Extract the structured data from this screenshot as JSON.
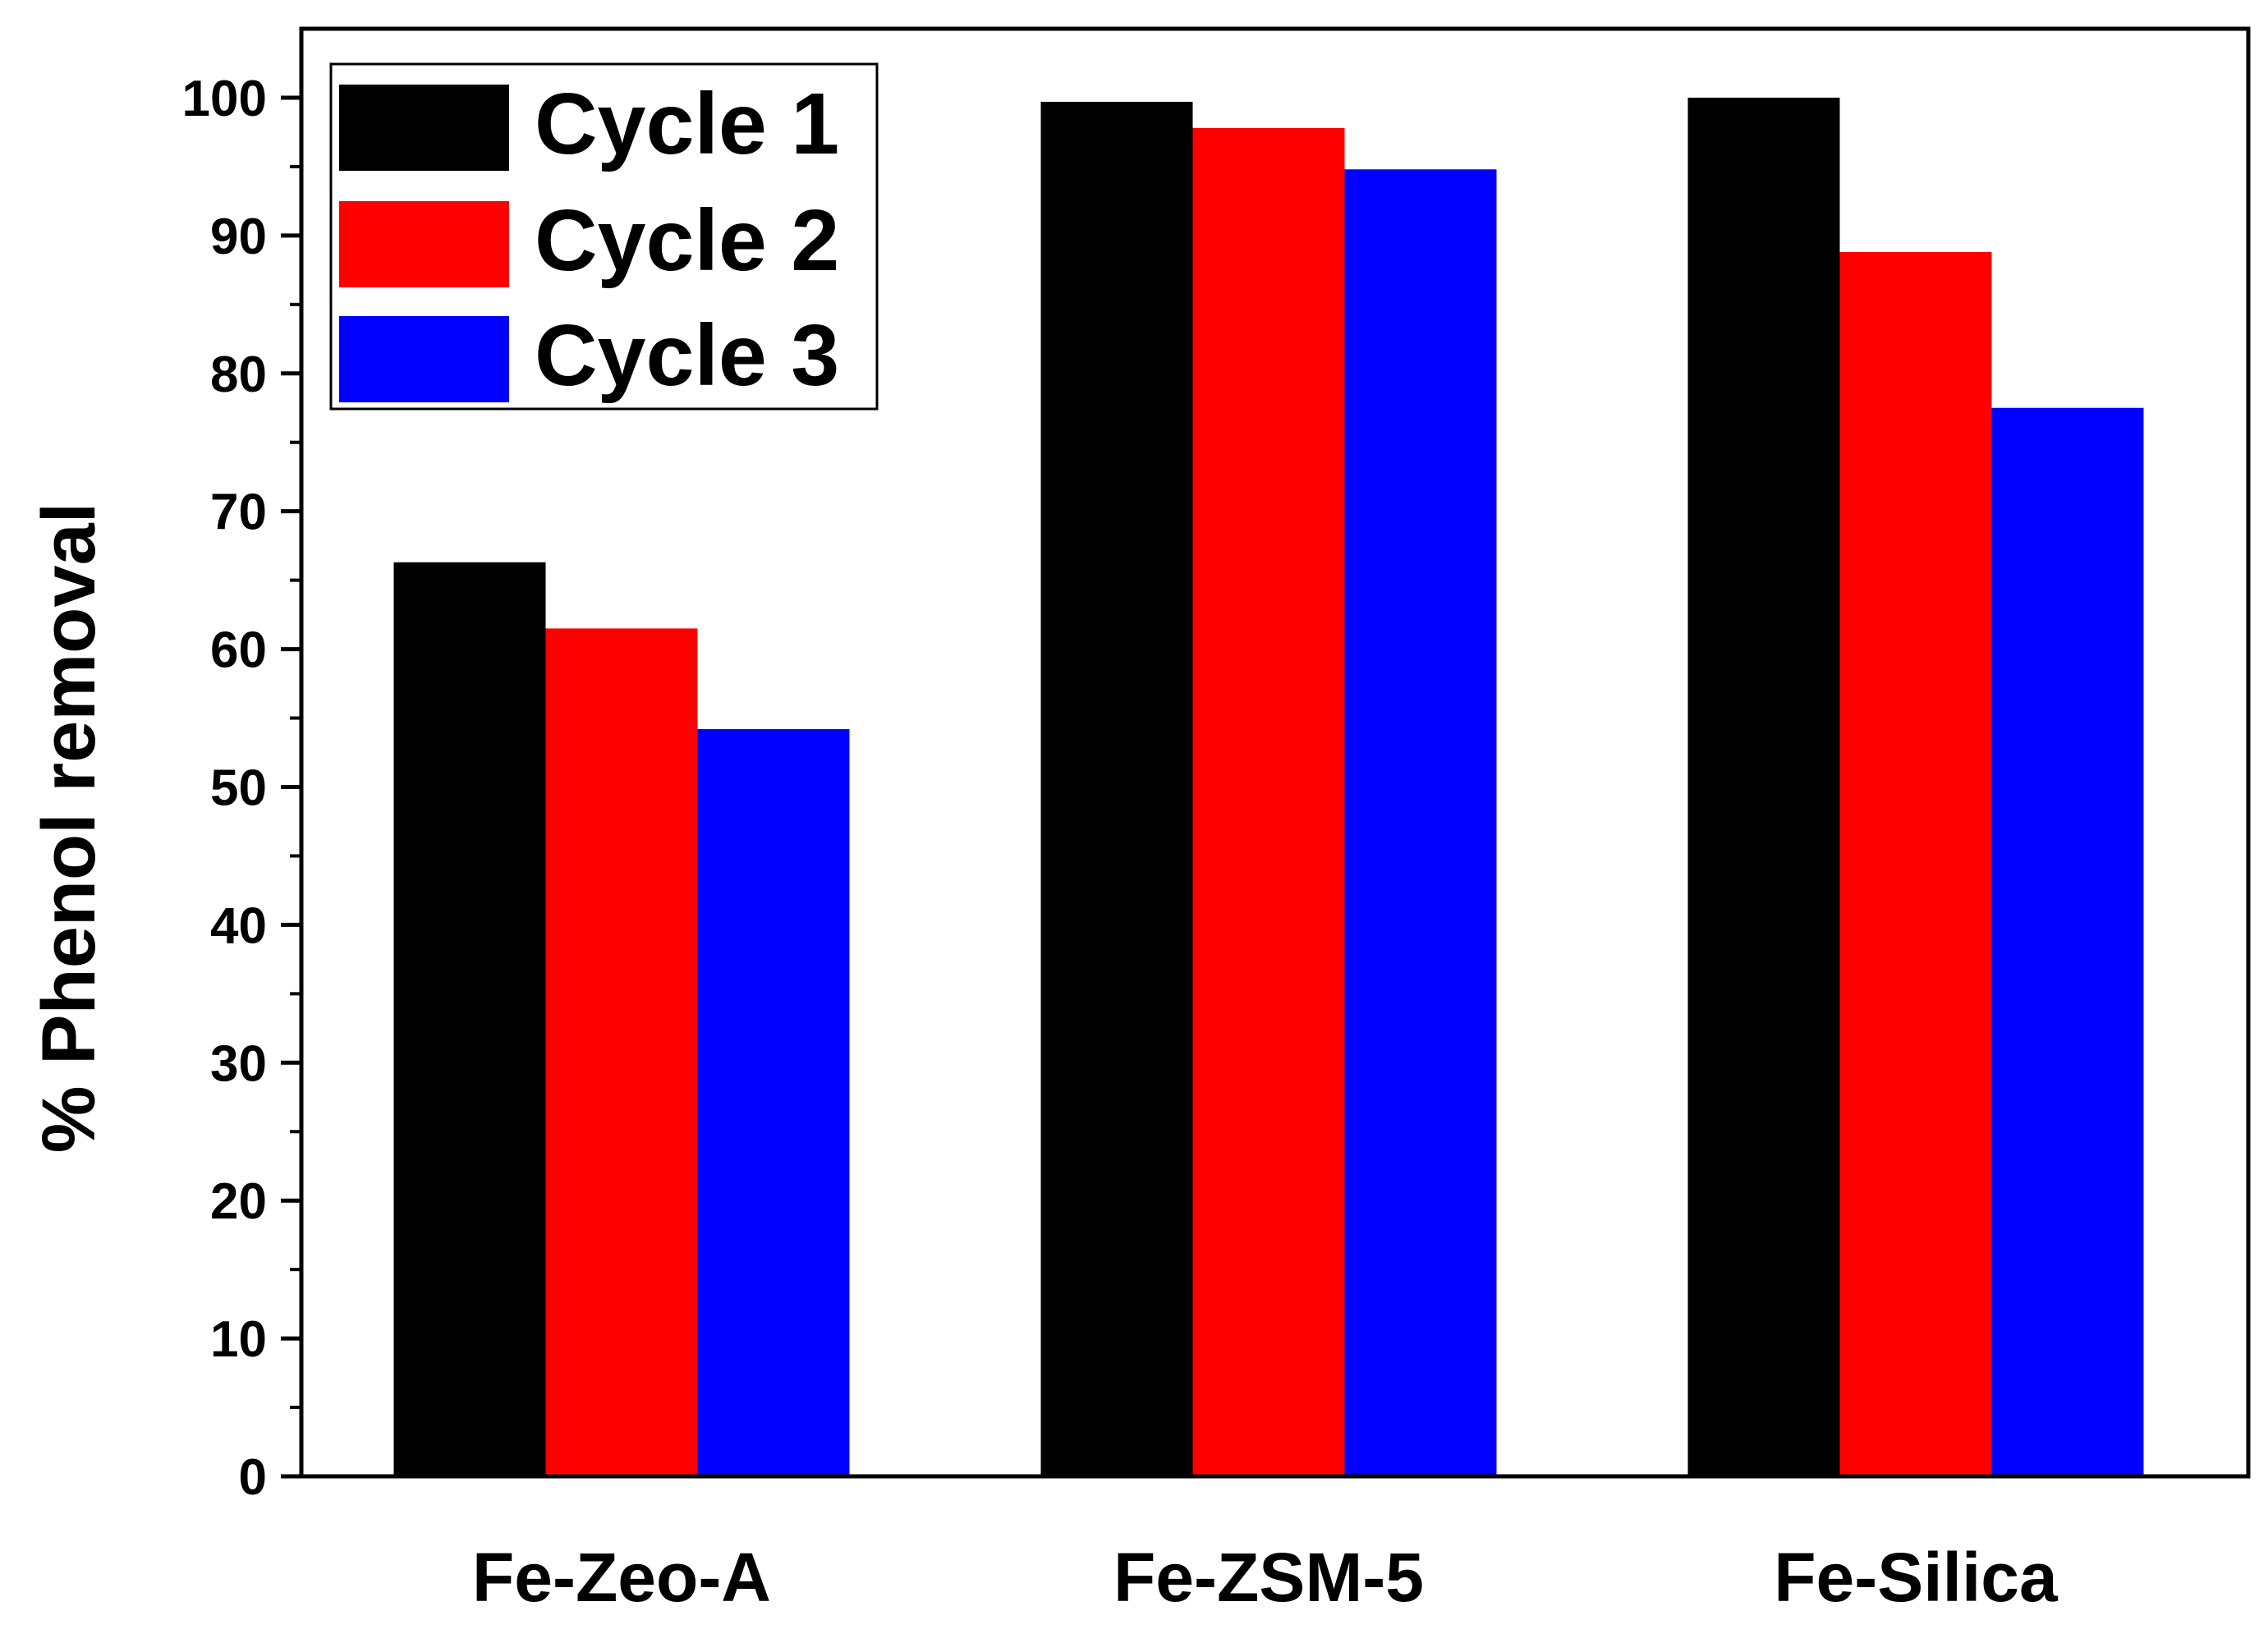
{
  "chart_data": {
    "type": "bar",
    "title": "",
    "xlabel": "",
    "ylabel": "% Phenol removal",
    "ylim": [
      0,
      105
    ],
    "yticks": [
      0,
      10,
      20,
      30,
      40,
      50,
      60,
      70,
      80,
      90,
      100
    ],
    "grid": false,
    "legend_position": "top-left",
    "categories": [
      "Fe-Zeo-A",
      "Fe-ZSM-5",
      "Fe-Silica"
    ],
    "series": [
      {
        "name": "Cycle 1",
        "color": "#000000",
        "values": [
          66.3,
          99.7,
          100.0
        ]
      },
      {
        "name": "Cycle 2",
        "color": "#ff0000",
        "values": [
          61.5,
          97.8,
          88.8
        ]
      },
      {
        "name": "Cycle 3",
        "color": "#0000ff",
        "values": [
          54.2,
          94.8,
          77.5
        ]
      }
    ]
  }
}
